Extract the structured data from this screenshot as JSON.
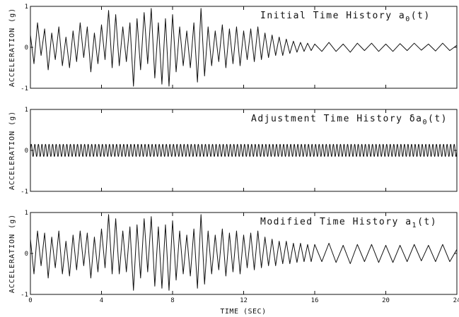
{
  "chart_data": [
    {
      "type": "line",
      "panel": "top",
      "title": "Initial Time History",
      "title_symbol": "a",
      "title_subscript": "0",
      "title_suffix": "(t)",
      "ylabel": "ACCELERATION (g)",
      "xlabel": "",
      "xlim": [
        0,
        24
      ],
      "ylim": [
        -1,
        1
      ],
      "xticks": [
        0,
        4,
        8,
        12,
        16,
        20,
        24
      ],
      "yticks": [
        -1,
        0,
        1
      ],
      "show_xticklabels": false,
      "series": [
        {
          "x": [
            0,
            0.2,
            0.4,
            0.6,
            0.8,
            1,
            1.2,
            1.4,
            1.6,
            1.8,
            2,
            2.2,
            2.4,
            2.6,
            2.8,
            3,
            3.2,
            3.4,
            3.6,
            3.8,
            4,
            4.2,
            4.4,
            4.6,
            4.8,
            5,
            5.2,
            5.4,
            5.6,
            5.8,
            6,
            6.2,
            6.4,
            6.6,
            6.8,
            7,
            7.2,
            7.4,
            7.6,
            7.8,
            8,
            8.2,
            8.4,
            8.6,
            8.8,
            9,
            9.2,
            9.4,
            9.6,
            9.8,
            10,
            10.2,
            10.4,
            10.6,
            10.8,
            11,
            11.2,
            11.4,
            11.6,
            11.8,
            12,
            12.2,
            12.4,
            12.6,
            12.8,
            13,
            13.2,
            13.4,
            13.6,
            13.8,
            14,
            14.2,
            14.4,
            14.6,
            14.8,
            15,
            15.2,
            15.4,
            15.6,
            15.8,
            16,
            16.4,
            16.8,
            17.2,
            17.6,
            18,
            18.4,
            18.8,
            19.2,
            19.6,
            20,
            20.4,
            20.8,
            21.2,
            21.6,
            22,
            22.4,
            22.8,
            23.2,
            23.6,
            24
          ],
          "y": [
            0.3,
            -0.4,
            0.6,
            -0.2,
            0.45,
            -0.55,
            0.35,
            -0.3,
            0.5,
            -0.45,
            0.25,
            -0.5,
            0.4,
            -0.35,
            0.6,
            -0.25,
            0.5,
            -0.6,
            0.35,
            -0.4,
            0.55,
            -0.3,
            0.9,
            -0.5,
            0.8,
            -0.45,
            0.5,
            -0.35,
            0.6,
            -0.95,
            0.7,
            -0.55,
            0.85,
            -0.4,
            0.95,
            -0.75,
            0.6,
            -0.9,
            0.7,
            -0.95,
            0.8,
            -0.6,
            0.5,
            -0.45,
            0.4,
            -0.5,
            0.6,
            -0.85,
            0.95,
            -0.7,
            0.5,
            -0.45,
            0.4,
            -0.35,
            0.55,
            -0.5,
            0.45,
            -0.4,
            0.5,
            -0.45,
            0.4,
            -0.3,
            0.45,
            -0.35,
            0.5,
            -0.3,
            0.35,
            -0.25,
            0.3,
            -0.2,
            0.25,
            -0.2,
            0.2,
            -0.15,
            0.15,
            -0.12,
            0.12,
            -0.1,
            0.1,
            -0.08,
            0.08,
            -0.1,
            0.12,
            -0.1,
            0.08,
            -0.12,
            0.1,
            -0.08,
            0.1,
            -0.1,
            0.08,
            -0.1,
            0.09,
            -0.08,
            0.1,
            -0.07,
            0.08,
            -0.09,
            0.1,
            -0.08,
            0.05
          ]
        }
      ]
    },
    {
      "type": "line",
      "panel": "middle",
      "title": "Adjustment Time History",
      "title_symbol": "δa",
      "title_subscript": "0",
      "title_suffix": "(t)",
      "ylabel": "ACCELERATION (g)",
      "xlabel": "",
      "xlim": [
        0,
        24
      ],
      "ylim": [
        -1,
        1
      ],
      "xticks": [
        0,
        4,
        8,
        12,
        16,
        20,
        24
      ],
      "yticks": [
        -1,
        0,
        1
      ],
      "show_xticklabels": false,
      "series": [
        {
          "function": "sine",
          "amplitude": 0.15,
          "frequency_hz": 5,
          "x_start": 0,
          "x_end": 24
        }
      ]
    },
    {
      "type": "line",
      "panel": "bottom",
      "title": "Modified Time History",
      "title_symbol": "a",
      "title_subscript": "1",
      "title_suffix": "(t)",
      "ylabel": "ACCELERATION (g)",
      "xlabel": "TIME (SEC)",
      "xlim": [
        0,
        24
      ],
      "ylim": [
        -1,
        1
      ],
      "xticks": [
        0,
        4,
        8,
        12,
        16,
        20,
        24
      ],
      "yticks": [
        -1,
        0,
        1
      ],
      "show_xticklabels": true,
      "series": [
        {
          "x": [
            0,
            0.2,
            0.4,
            0.6,
            0.8,
            1,
            1.2,
            1.4,
            1.6,
            1.8,
            2,
            2.2,
            2.4,
            2.6,
            2.8,
            3,
            3.2,
            3.4,
            3.6,
            3.8,
            4,
            4.2,
            4.4,
            4.6,
            4.8,
            5,
            5.2,
            5.4,
            5.6,
            5.8,
            6,
            6.2,
            6.4,
            6.6,
            6.8,
            7,
            7.2,
            7.4,
            7.6,
            7.8,
            8,
            8.2,
            8.4,
            8.6,
            8.8,
            9,
            9.2,
            9.4,
            9.6,
            9.8,
            10,
            10.2,
            10.4,
            10.6,
            10.8,
            11,
            11.2,
            11.4,
            11.6,
            11.8,
            12,
            12.2,
            12.4,
            12.6,
            12.8,
            13,
            13.2,
            13.4,
            13.6,
            13.8,
            14,
            14.2,
            14.4,
            14.6,
            14.8,
            15,
            15.2,
            15.4,
            15.6,
            15.8,
            16,
            16.4,
            16.8,
            17.2,
            17.6,
            18,
            18.4,
            18.8,
            19.2,
            19.6,
            20,
            20.4,
            20.8,
            21.2,
            21.6,
            22,
            22.4,
            22.8,
            23.2,
            23.6,
            24
          ],
          "y": [
            0.35,
            -0.5,
            0.55,
            -0.3,
            0.5,
            -0.6,
            0.4,
            -0.35,
            0.55,
            -0.5,
            0.3,
            -0.55,
            0.45,
            -0.4,
            0.55,
            -0.3,
            0.5,
            -0.6,
            0.4,
            -0.45,
            0.6,
            -0.35,
            0.95,
            -0.5,
            0.85,
            -0.5,
            0.55,
            -0.45,
            0.65,
            -0.9,
            0.7,
            -0.6,
            0.85,
            -0.45,
            0.9,
            -0.8,
            0.65,
            -0.85,
            0.7,
            -0.9,
            0.8,
            -0.65,
            0.55,
            -0.5,
            0.45,
            -0.55,
            0.6,
            -0.85,
            0.95,
            -0.75,
            0.55,
            -0.5,
            0.45,
            -0.4,
            0.6,
            -0.55,
            0.5,
            -0.45,
            0.55,
            -0.5,
            0.45,
            -0.35,
            0.5,
            -0.4,
            0.55,
            -0.35,
            0.4,
            -0.3,
            0.35,
            -0.3,
            0.3,
            -0.25,
            0.3,
            -0.25,
            0.25,
            -0.22,
            0.25,
            -0.2,
            0.22,
            -0.2,
            0.22,
            -0.2,
            0.25,
            -0.22,
            0.2,
            -0.25,
            0.22,
            -0.2,
            0.22,
            -0.22,
            0.2,
            -0.22,
            0.2,
            -0.2,
            0.22,
            -0.18,
            0.2,
            -0.2,
            0.22,
            -0.2,
            0.1
          ]
        }
      ]
    }
  ]
}
